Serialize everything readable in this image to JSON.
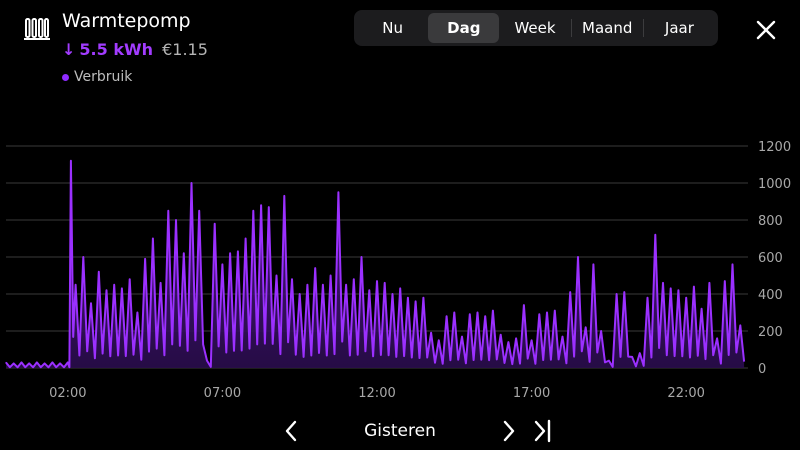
{
  "header": {
    "title": "Warmtepomp",
    "icon": "radiator-icon",
    "arrow": "↓",
    "energy": "5.5 kWh",
    "cost": "€1.15",
    "legend_label": "Verbruik",
    "accent_color": "#9b30ff"
  },
  "periods": [
    {
      "label": "Nu",
      "active": false
    },
    {
      "label": "Dag",
      "active": true
    },
    {
      "label": "Week",
      "active": false
    },
    {
      "label": "Maand",
      "active": false
    },
    {
      "label": "Jaar",
      "active": false
    }
  ],
  "footer": {
    "period_label": "Gisteren"
  },
  "chart_data": {
    "type": "area",
    "series": [
      {
        "name": "Verbruik",
        "color": "#9b30ff",
        "x": [
          0,
          0.25,
          0.5,
          0.75,
          1,
          1.25,
          1.5,
          1.75,
          2,
          2.1,
          2.25,
          2.5,
          2.75,
          3,
          3.25,
          3.5,
          3.75,
          4,
          4.25,
          4.5,
          4.75,
          5,
          5.25,
          5.5,
          5.75,
          6,
          6.25,
          6.5,
          6.75,
          7,
          7.25,
          7.5,
          7.75,
          8,
          8.25,
          8.5,
          8.75,
          9,
          9.25,
          9.5,
          9.75,
          10,
          10.25,
          10.5,
          10.75,
          11,
          11.25,
          11.5,
          11.75,
          12,
          12.25,
          12.5,
          12.75,
          13,
          13.25,
          13.5,
          13.75,
          14,
          14.25,
          14.5,
          14.75,
          15,
          15.25,
          15.5,
          15.75,
          16,
          16.25,
          16.5,
          16.75,
          17,
          17.25,
          17.5,
          17.75,
          18,
          18.25,
          18.5,
          18.75,
          19,
          19.25,
          19.5,
          19.75,
          20,
          20.25,
          20.5,
          20.75,
          21,
          21.25,
          21.5,
          21.75,
          22,
          22.25,
          22.5,
          22.75,
          23,
          23.25,
          23.5,
          23.75
        ],
        "values": [
          30,
          25,
          30,
          25,
          30,
          25,
          30,
          25,
          30,
          1120,
          450,
          600,
          350,
          520,
          420,
          450,
          430,
          480,
          300,
          590,
          700,
          460,
          850,
          800,
          620,
          1000,
          850,
          40,
          780,
          560,
          620,
          630,
          700,
          850,
          880,
          870,
          500,
          930,
          480,
          400,
          450,
          540,
          450,
          500,
          950,
          450,
          480,
          600,
          420,
          470,
          460,
          400,
          430,
          380,
          360,
          380,
          190,
          150,
          280,
          300,
          170,
          290,
          300,
          280,
          310,
          180,
          140,
          160,
          340,
          150,
          290,
          300,
          310,
          170,
          410,
          600,
          220,
          560,
          200,
          40,
          400,
          410,
          60,
          80,
          380,
          720,
          460,
          430,
          420,
          380,
          440,
          320,
          460,
          160,
          470,
          560,
          230
        ]
      }
    ],
    "x_ticks": [
      "02:00",
      "07:00",
      "12:00",
      "17:00",
      "22:00"
    ],
    "x_tick_values": [
      2,
      7,
      12,
      17,
      22
    ],
    "y_ticks": [
      "0",
      "200",
      "400",
      "600",
      "800",
      "1000",
      "1200"
    ],
    "ylim": [
      0,
      1200
    ],
    "xlim": [
      0,
      24
    ],
    "grid": true,
    "xlabel": "",
    "ylabel": "",
    "title": ""
  }
}
